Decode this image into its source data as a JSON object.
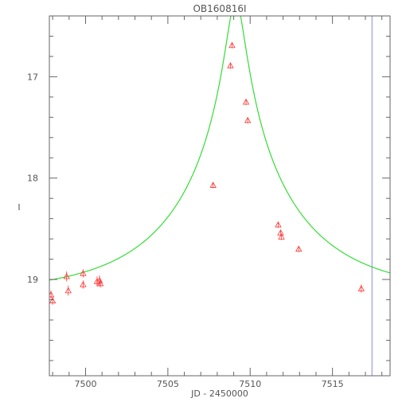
{
  "chart_data": {
    "type": "scatter",
    "title": "OB160816I",
    "xlabel": "JD - 2450000",
    "ylabel": "I",
    "xlim": [
      7497.8,
      7518.5
    ],
    "ylim": [
      19.95,
      16.4
    ],
    "y_inverted": true,
    "xticks": [
      7500,
      7505,
      7510,
      7515
    ],
    "yticks": [
      17,
      18,
      19
    ],
    "grid": false,
    "colors": {
      "points": "#ff3333",
      "model": "#33dd33",
      "marker_line": "#8888ee",
      "axes": "#666666"
    },
    "model_curve": {
      "baseline_mag": 19.14,
      "t0": 7509.12,
      "tE": 7.5,
      "u0": 0.07
    },
    "vertical_marker_x": 7517.4,
    "points": [
      {
        "x": 7497.9,
        "y": 19.15,
        "err": 0.04
      },
      {
        "x": 7498.0,
        "y": 19.21,
        "err": 0.04
      },
      {
        "x": 7498.85,
        "y": 18.97,
        "err": 0.05
      },
      {
        "x": 7498.95,
        "y": 19.11,
        "err": 0.05
      },
      {
        "x": 7499.85,
        "y": 18.94,
        "err": 0.04
      },
      {
        "x": 7499.85,
        "y": 19.05,
        "err": 0.04
      },
      {
        "x": 7500.7,
        "y": 19.02,
        "err": 0.05
      },
      {
        "x": 7500.85,
        "y": 19.01,
        "err": 0.05
      },
      {
        "x": 7500.9,
        "y": 19.04,
        "err": 0.04
      },
      {
        "x": 7507.75,
        "y": 18.07,
        "err": 0.03
      },
      {
        "x": 7508.8,
        "y": 16.89,
        "err": 0.03
      },
      {
        "x": 7508.9,
        "y": 16.69,
        "err": 0.03
      },
      {
        "x": 7509.75,
        "y": 17.25,
        "err": 0.03
      },
      {
        "x": 7509.85,
        "y": 17.43,
        "err": 0.03
      },
      {
        "x": 7511.7,
        "y": 18.46,
        "err": 0.03
      },
      {
        "x": 7511.85,
        "y": 18.54,
        "err": 0.03
      },
      {
        "x": 7511.9,
        "y": 18.58,
        "err": 0.03
      },
      {
        "x": 7512.95,
        "y": 18.7,
        "err": 0.03
      },
      {
        "x": 7516.75,
        "y": 19.09,
        "err": 0.04
      }
    ]
  }
}
